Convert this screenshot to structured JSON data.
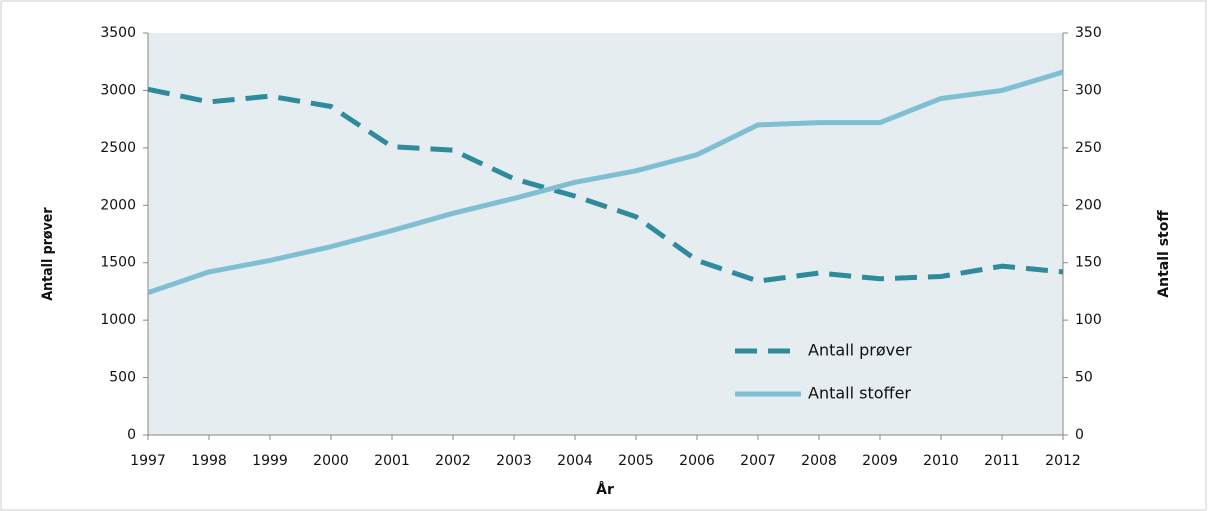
{
  "chart_data": {
    "type": "line",
    "x": [
      1997,
      1998,
      1999,
      2000,
      2001,
      2002,
      2003,
      2004,
      2005,
      2006,
      2007,
      2008,
      2009,
      2010,
      2011,
      2012
    ],
    "xlim": [
      1997,
      2012
    ],
    "xticks": [
      1997,
      1998,
      1999,
      2000,
      2001,
      2002,
      2003,
      2004,
      2005,
      2006,
      2007,
      2008,
      2009,
      2010,
      2011,
      2012
    ],
    "xlabel": "År",
    "ylabel": "Antall prøver",
    "y2label": "Antall stoff",
    "ylim": [
      0,
      3500
    ],
    "yticks": [
      0,
      500,
      1000,
      1500,
      2000,
      2500,
      3000,
      3500
    ],
    "y2lim": [
      0,
      350
    ],
    "y2ticks": [
      0,
      50,
      100,
      150,
      200,
      250,
      300,
      350
    ],
    "grid": false,
    "legend": "lower right",
    "series": [
      {
        "name": "Antall prøver",
        "color": "#2f8a9c",
        "dashed": true,
        "values": [
          3010,
          2900,
          2950,
          2860,
          2510,
          2480,
          2230,
          2080,
          1900,
          1520,
          1340,
          1410,
          1360,
          1380,
          1470,
          1420
        ]
      },
      {
        "name": "Antall stoffer",
        "color": "#80bfd2",
        "dashed": false,
        "axis": "y2",
        "values": [
          124,
          142,
          152,
          164,
          178,
          193,
          206,
          220,
          230,
          244,
          270,
          272,
          272,
          293,
          300,
          316
        ]
      }
    ]
  }
}
